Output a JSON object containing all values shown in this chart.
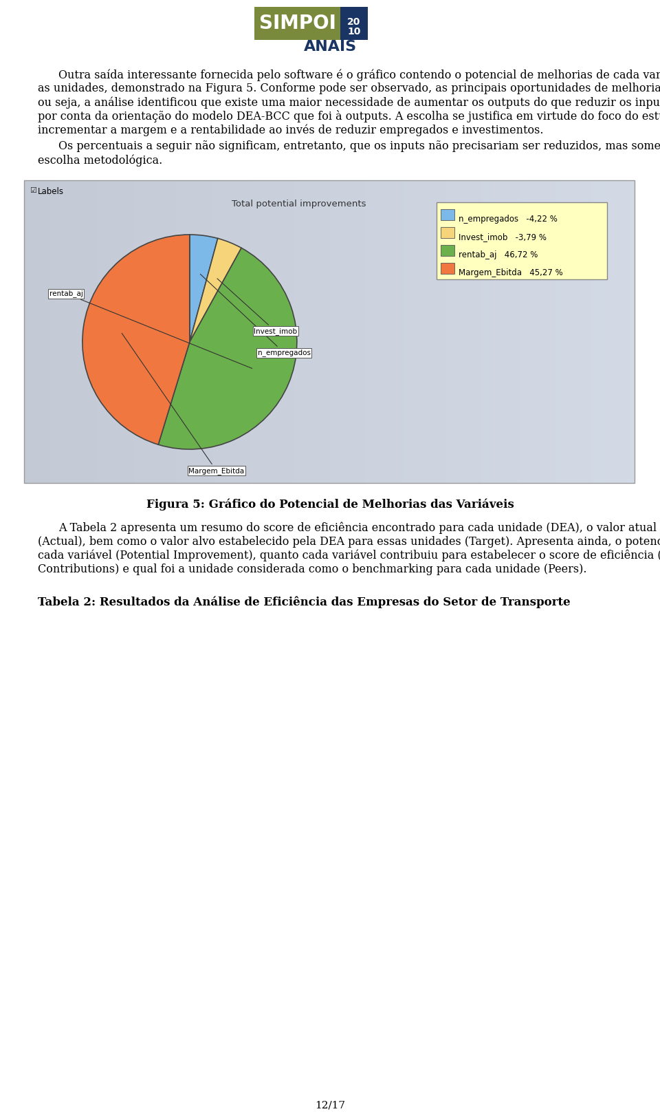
{
  "page_bg": "#ffffff",
  "logo_text_simpoi": "SIMPOI",
  "logo_bg_color": "#7a8a3c",
  "logo_year_bg": "#1a3564",
  "anais_text": "ANAIS",
  "anais_color": "#1a3564",
  "chart_title": "Total potential improvements",
  "chart_labels_checkbox": "Labels",
  "pie_slices": [
    {
      "label": "n_empregados",
      "value": 4.22,
      "color": "#7cb8e8",
      "legend_pct": "-4,22 %"
    },
    {
      "label": "Invest_imob",
      "value": 3.79,
      "color": "#f5d47a",
      "legend_pct": "-3,79 %"
    },
    {
      "label": "rentab_aj",
      "value": 46.72,
      "color": "#6ab04c",
      "legend_pct": "46,72 %"
    },
    {
      "label": "Margem_Ebitda",
      "value": 45.27,
      "color": "#f07840",
      "legend_pct": "45,27 %"
    }
  ],
  "figure_caption": "Figura 5: Gráfico do Potencial de Melhorias das Variáveis",
  "table_heading": "Tabela 2: Resultados da Análise de Eficiência das Empresas do Setor de Transporte",
  "page_number": "12/17"
}
